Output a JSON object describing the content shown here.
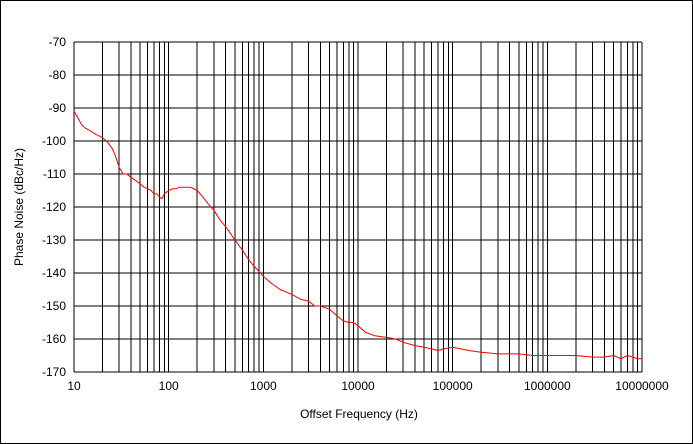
{
  "chart_data": {
    "type": "line",
    "title": "",
    "xlabel": "Offset Frequency (Hz)",
    "ylabel": "Phase Noise (dBc/Hz)",
    "xscale": "log",
    "xlim": [
      10,
      10000000
    ],
    "ylim": [
      -170,
      -70
    ],
    "grid": true,
    "legend": "none",
    "x_ticks": [
      "10",
      "100",
      "1000",
      "10000",
      "100000",
      "1000000",
      "10000000"
    ],
    "y_ticks": [
      "-70",
      "-80",
      "-90",
      "-100",
      "-110",
      "-120",
      "-130",
      "-140",
      "-150",
      "-160",
      "-170"
    ],
    "series": [
      {
        "color": "#ff0000",
        "x": [
          10,
          11,
          12,
          13,
          15,
          17,
          20,
          22,
          25,
          27,
          30,
          33,
          36,
          40,
          45,
          50,
          55,
          60,
          65,
          70,
          75,
          80,
          85,
          90,
          100,
          110,
          120,
          130,
          150,
          170,
          200,
          230,
          260,
          300,
          350,
          400,
          450,
          500,
          600,
          700,
          800,
          900,
          1000,
          1200,
          1500,
          2000,
          2500,
          3000,
          3500,
          4000,
          5000,
          6000,
          7000,
          8000,
          9000,
          10000,
          12000,
          15000,
          20000,
          25000,
          30000,
          40000,
          50000,
          60000,
          70000,
          80000,
          100000,
          150000,
          200000,
          300000,
          400000,
          500000,
          700000,
          1000000,
          1500000,
          2000000,
          3000000,
          4000000,
          5000000,
          6000000,
          7000000,
          8000000,
          9000000,
          10000000
        ],
        "y": [
          -91,
          -93,
          -95,
          -96,
          -97,
          -98,
          -99,
          -100,
          -102,
          -104,
          -108,
          -110,
          -110,
          -111,
          -112,
          -113,
          -114,
          -114.5,
          -115,
          -116,
          -116,
          -117,
          -117.5,
          -116,
          -115,
          -114.5,
          -114.5,
          -114,
          -114,
          -114,
          -115,
          -117,
          -119,
          -121,
          -124,
          -126,
          -128,
          -130,
          -133,
          -136,
          -138,
          -139.5,
          -141,
          -143,
          -145,
          -146.5,
          -148,
          -148.5,
          -150,
          -150,
          -151,
          -153,
          -154.5,
          -155,
          -155,
          -156,
          -158,
          -159,
          -159.5,
          -160,
          -161,
          -162,
          -162.5,
          -163,
          -163.5,
          -163,
          -162.5,
          -163.5,
          -164,
          -164.5,
          -164.5,
          -164.5,
          -165,
          -165,
          -165,
          -165,
          -165.5,
          -165.5,
          -165,
          -166,
          -165,
          -165.5,
          -166,
          -166
        ]
      }
    ]
  },
  "colors": {
    "series": "#ff0000",
    "grid": "#000000",
    "axis": "#000000"
  }
}
